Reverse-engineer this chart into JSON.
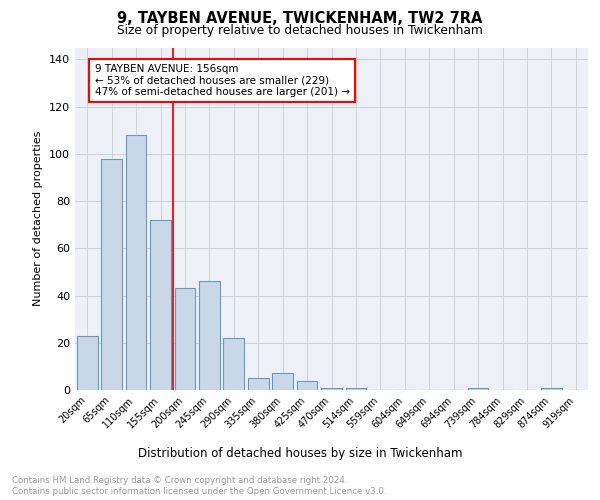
{
  "title1": "9, TAYBEN AVENUE, TWICKENHAM, TW2 7RA",
  "title2": "Size of property relative to detached houses in Twickenham",
  "xlabel": "Distribution of detached houses by size in Twickenham",
  "ylabel": "Number of detached properties",
  "bins": [
    "20sqm",
    "65sqm",
    "110sqm",
    "155sqm",
    "200sqm",
    "245sqm",
    "290sqm",
    "335sqm",
    "380sqm",
    "425sqm",
    "470sqm",
    "514sqm",
    "559sqm",
    "604sqm",
    "649sqm",
    "694sqm",
    "739sqm",
    "784sqm",
    "829sqm",
    "874sqm",
    "919sqm"
  ],
  "values": [
    23,
    98,
    108,
    72,
    43,
    46,
    22,
    5,
    7,
    4,
    1,
    1,
    0,
    0,
    0,
    0,
    1,
    0,
    0,
    1,
    0
  ],
  "bar_color": "#c8d8e8",
  "bar_edge_color": "#6699bb",
  "red_line_x": 3.5,
  "annotation_text": "9 TAYBEN AVENUE: 156sqm\n← 53% of detached houses are smaller (229)\n47% of semi-detached houses are larger (201) →",
  "ylim": [
    0,
    145
  ],
  "yticks": [
    0,
    20,
    40,
    60,
    80,
    100,
    120,
    140
  ],
  "footer1": "Contains HM Land Registry data © Crown copyright and database right 2024.",
  "footer2": "Contains public sector information licensed under the Open Government Licence v3.0.",
  "bg_color": "#edf1f7",
  "grid_color": "#cccccc"
}
